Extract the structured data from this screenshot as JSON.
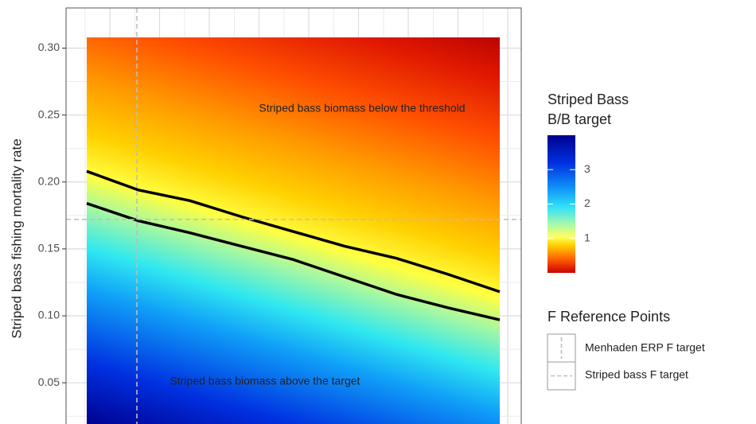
{
  "chart_data": {
    "type": "heatmap",
    "y_label": "Striped bass fishing mortality rate",
    "ylim": [
      0.0192,
      0.33
    ],
    "yticks": [
      {
        "value": 0.05,
        "label": "0.05"
      },
      {
        "value": 0.1,
        "label": "0.10"
      },
      0.15,
      {
        "value": 0.2,
        "label": "0.20"
      },
      0.25,
      {
        "value": 0.3,
        "label": "0.30"
      }
    ],
    "data_top": 0.308,
    "grid": true,
    "categories": [
      null,
      null,
      null,
      null,
      null,
      null,
      null,
      null,
      null
    ],
    "series": [
      {
        "color": "#000000",
        "values": [
          0.208,
          0.194,
          0.186,
          0.174,
          0.163,
          0.152,
          0.143,
          0.131,
          0.118
        ]
      },
      {
        "color": "#000000",
        "values": [
          0.184,
          0.171,
          0.162,
          0.152,
          0.142,
          0.129,
          0.116,
          0.106,
          0.097
        ]
      }
    ],
    "annotations": [
      "Striped bass biomass below the threshold",
      "Striped bass biomass above the target"
    ],
    "colorbar": {
      "title": [
        "Striped Bass",
        "B/B target"
      ],
      "lim": [
        0,
        4
      ],
      "ticks": [
        1,
        2,
        3
      ]
    },
    "reference_legend": {
      "title": "F Reference Points",
      "entries": [
        {
          "name": "Menhaden ERP F target",
          "orientation": "vertical"
        },
        {
          "name": "Striped bass F target",
          "orientation": "horizontal",
          "y": 0.172
        }
      ]
    },
    "reference_color": "#bdbdbd"
  }
}
